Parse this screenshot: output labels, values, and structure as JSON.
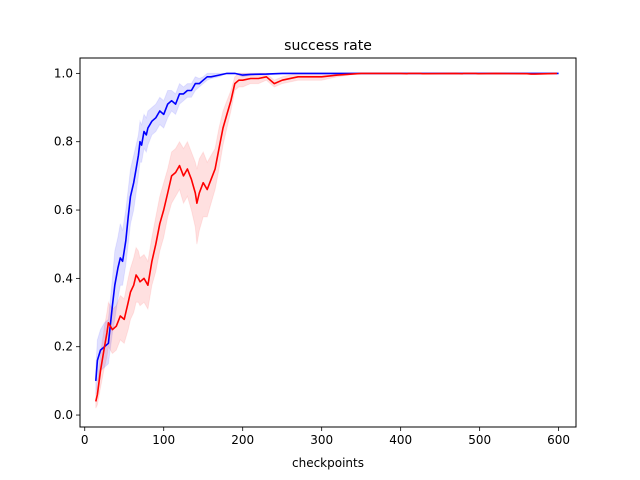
{
  "chart_data": {
    "type": "line",
    "title": "success rate",
    "xlabel": "checkpoints",
    "ylabel": "",
    "xlim": [
      -6,
      622
    ],
    "ylim": [
      -0.035,
      1.045
    ],
    "xticks": [
      0,
      100,
      200,
      300,
      400,
      500,
      600
    ],
    "yticks": [
      0.0,
      0.2,
      0.4,
      0.6,
      0.8,
      1.0
    ],
    "xtick_labels": [
      "0",
      "100",
      "200",
      "300",
      "400",
      "500",
      "600"
    ],
    "ytick_labels": [
      "0.0",
      "0.2",
      "0.4",
      "0.6",
      "0.8",
      "1.0"
    ],
    "grid": false,
    "legend": "none",
    "series": [
      {
        "color": "#0000ff",
        "band_alpha": 0.12,
        "x": [
          14,
          16,
          20,
          25,
          30,
          35,
          38,
          42,
          45,
          48,
          52,
          55,
          58,
          62,
          65,
          68,
          70,
          72,
          75,
          78,
          80,
          85,
          90,
          95,
          100,
          105,
          110,
          115,
          120,
          125,
          130,
          135,
          140,
          145,
          150,
          155,
          160,
          170,
          180,
          190,
          200,
          210,
          230,
          250,
          300,
          600
        ],
        "y": [
          0.1,
          0.16,
          0.19,
          0.2,
          0.21,
          0.32,
          0.38,
          0.43,
          0.46,
          0.45,
          0.51,
          0.58,
          0.64,
          0.68,
          0.72,
          0.76,
          0.8,
          0.79,
          0.83,
          0.82,
          0.84,
          0.86,
          0.87,
          0.89,
          0.88,
          0.91,
          0.92,
          0.91,
          0.94,
          0.94,
          0.95,
          0.95,
          0.97,
          0.97,
          0.98,
          0.99,
          0.99,
          0.995,
          1.0,
          1.0,
          0.995,
          0.997,
          0.998,
          1.0,
          1.0,
          1.0
        ],
        "lower": [
          0.06,
          0.1,
          0.13,
          0.14,
          0.15,
          0.24,
          0.28,
          0.34,
          0.38,
          0.38,
          0.44,
          0.5,
          0.56,
          0.6,
          0.65,
          0.7,
          0.74,
          0.74,
          0.78,
          0.77,
          0.79,
          0.82,
          0.83,
          0.85,
          0.84,
          0.87,
          0.89,
          0.88,
          0.91,
          0.92,
          0.93,
          0.93,
          0.95,
          0.96,
          0.97,
          0.98,
          0.985,
          0.99,
          1.0,
          1.0,
          0.99,
          0.995,
          0.996,
          1.0,
          1.0,
          1.0
        ],
        "upper": [
          0.14,
          0.22,
          0.25,
          0.27,
          0.28,
          0.4,
          0.48,
          0.52,
          0.56,
          0.54,
          0.6,
          0.66,
          0.72,
          0.76,
          0.79,
          0.82,
          0.86,
          0.85,
          0.88,
          0.87,
          0.89,
          0.9,
          0.91,
          0.93,
          0.92,
          0.95,
          0.95,
          0.94,
          0.97,
          0.96,
          0.97,
          0.97,
          0.99,
          0.985,
          0.99,
          1.0,
          1.0,
          1.0,
          1.0,
          1.0,
          1.0,
          1.0,
          1.0,
          1.0,
          1.0,
          1.0
        ]
      },
      {
        "color": "#ff0000",
        "band_alpha": 0.12,
        "x": [
          14,
          16,
          20,
          25,
          28,
          30,
          35,
          40,
          45,
          50,
          55,
          58,
          62,
          65,
          68,
          70,
          75,
          80,
          85,
          90,
          95,
          100,
          105,
          110,
          115,
          120,
          125,
          130,
          135,
          140,
          142,
          145,
          150,
          155,
          160,
          165,
          170,
          175,
          180,
          185,
          190,
          195,
          200,
          210,
          220,
          230,
          240,
          250,
          270,
          300,
          320,
          350,
          400,
          408,
          410,
          425,
          428,
          470,
          478,
          480,
          495,
          498,
          520,
          560,
          565,
          570,
          598
        ],
        "y": [
          0.04,
          0.06,
          0.13,
          0.2,
          0.24,
          0.27,
          0.25,
          0.26,
          0.29,
          0.28,
          0.33,
          0.36,
          0.38,
          0.41,
          0.4,
          0.39,
          0.4,
          0.38,
          0.45,
          0.5,
          0.56,
          0.6,
          0.65,
          0.7,
          0.71,
          0.73,
          0.7,
          0.72,
          0.69,
          0.65,
          0.62,
          0.65,
          0.68,
          0.66,
          0.69,
          0.72,
          0.78,
          0.84,
          0.88,
          0.92,
          0.97,
          0.98,
          0.98,
          0.985,
          0.985,
          0.99,
          0.97,
          0.98,
          0.99,
          0.99,
          0.995,
          1.0,
          1.0,
          0.999,
          1.0,
          1.0,
          0.999,
          1.0,
          0.999,
          1.0,
          1.0,
          0.999,
          1.0,
          0.999,
          0.998,
          0.998,
          1.0
        ],
        "lower": [
          0.02,
          0.03,
          0.08,
          0.14,
          0.17,
          0.2,
          0.18,
          0.19,
          0.22,
          0.21,
          0.25,
          0.28,
          0.3,
          0.33,
          0.33,
          0.32,
          0.33,
          0.31,
          0.38,
          0.42,
          0.48,
          0.52,
          0.58,
          0.62,
          0.64,
          0.66,
          0.62,
          0.64,
          0.6,
          0.55,
          0.5,
          0.54,
          0.58,
          0.58,
          0.62,
          0.66,
          0.72,
          0.79,
          0.84,
          0.89,
          0.95,
          0.96,
          0.96,
          0.97,
          0.97,
          0.98,
          0.96,
          0.97,
          0.98,
          0.98,
          0.99,
          1.0,
          1.0,
          0.999,
          1.0,
          1.0,
          0.999,
          1.0,
          0.999,
          1.0,
          1.0,
          0.999,
          1.0,
          0.999,
          0.998,
          0.998,
          1.0
        ],
        "upper": [
          0.06,
          0.09,
          0.18,
          0.26,
          0.3,
          0.33,
          0.31,
          0.32,
          0.35,
          0.34,
          0.4,
          0.43,
          0.46,
          0.49,
          0.48,
          0.46,
          0.47,
          0.45,
          0.52,
          0.58,
          0.64,
          0.68,
          0.72,
          0.77,
          0.78,
          0.8,
          0.78,
          0.8,
          0.77,
          0.74,
          0.72,
          0.75,
          0.77,
          0.74,
          0.76,
          0.78,
          0.84,
          0.89,
          0.92,
          0.95,
          0.99,
          1.0,
          1.0,
          1.0,
          1.0,
          1.0,
          0.98,
          0.99,
          1.0,
          1.0,
          1.0,
          1.0,
          1.0,
          1.0,
          1.0,
          1.0,
          1.0,
          1.0,
          1.0,
          1.0,
          1.0,
          1.0,
          1.0,
          1.0,
          1.0,
          1.0,
          1.0
        ]
      }
    ]
  }
}
